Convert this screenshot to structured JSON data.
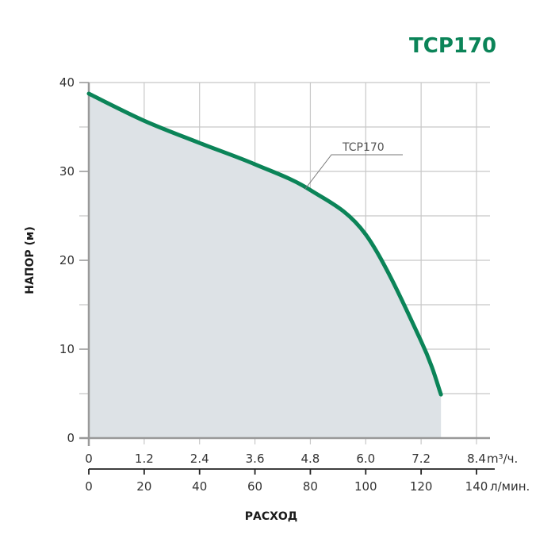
{
  "title": "TCP170",
  "colors": {
    "curve": "#0b8458",
    "fill": "#dde2e6",
    "grid": "#c8c8c8",
    "axis": "#999999",
    "title": "#0b8458"
  },
  "chart_data": {
    "type": "area",
    "title": "TCP170",
    "xlabel": "РАСХОД",
    "ylabel": "НАПОР (м)",
    "x_primary_unit": "m³/ч.",
    "x_secondary_unit": "л/мин.",
    "x_ticks": [
      "0",
      "1.2",
      "2.4",
      "3.6",
      "4.8",
      "6.0",
      "7.2",
      "8.4"
    ],
    "x_secondary_ticks": [
      "0",
      "20",
      "40",
      "60",
      "80",
      "100",
      "120",
      "140"
    ],
    "y_ticks": [
      "0",
      "10",
      "20",
      "30",
      "40"
    ],
    "xlim": [
      0,
      8.4
    ],
    "ylim": [
      0,
      40
    ],
    "grid": true,
    "series": [
      {
        "name": "TCP170",
        "x": [
          0,
          1.2,
          2.4,
          3.6,
          4.8,
          6.0,
          7.2,
          7.63
        ],
        "values": [
          38.75,
          35.7,
          33.2,
          30.8,
          27.9,
          22.9,
          10.9,
          4.9
        ]
      }
    ],
    "annotations": [
      {
        "text": "TCP170",
        "points_to_x": 4.6
      }
    ]
  },
  "labels": {
    "x_unit_primary": "m³/ч.",
    "x_unit_secondary": "л/мин.",
    "x_axis_title": "РАСХОД",
    "y_axis_title": "НАПОР (м)",
    "curve_label": "TCP170"
  }
}
